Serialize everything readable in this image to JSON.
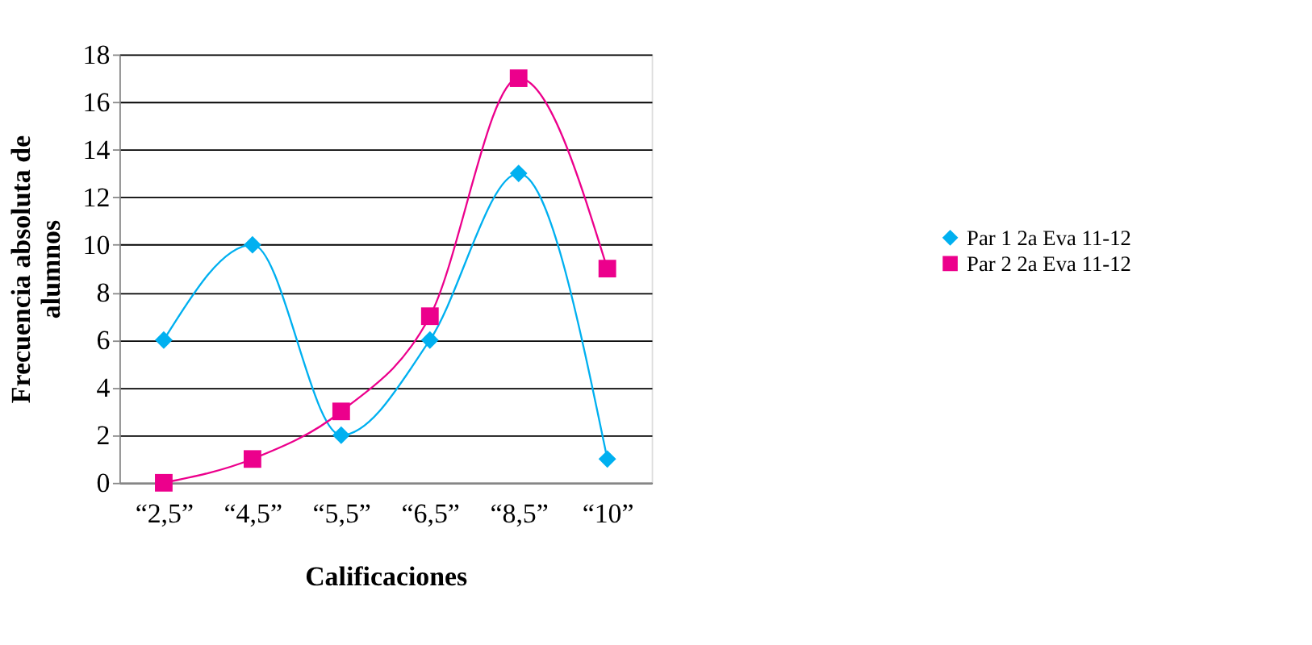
{
  "chart_data": {
    "type": "line",
    "xlabel": "Calificaciones",
    "ylabel": "Frecuencia absoluta de alumnos",
    "categories": [
      "“2,5”",
      "“4,5”",
      "“5,5”",
      "“6,5”",
      "“8,5”",
      "“10”"
    ],
    "series": [
      {
        "name": "Par 1 2a Eva 11-12",
        "color": "#00b0f0",
        "marker": "diamond",
        "values": [
          6,
          10,
          2,
          6,
          13,
          1
        ]
      },
      {
        "name": "Par 2 2a Eva 11-12",
        "color": "#ec008c",
        "marker": "square",
        "values": [
          0,
          1,
          3,
          7,
          17,
          9
        ]
      }
    ],
    "ylim": [
      0,
      18
    ],
    "yticks": [
      0,
      2,
      4,
      6,
      8,
      10,
      12,
      14,
      16,
      18
    ],
    "grid": "y",
    "legend": "right"
  }
}
